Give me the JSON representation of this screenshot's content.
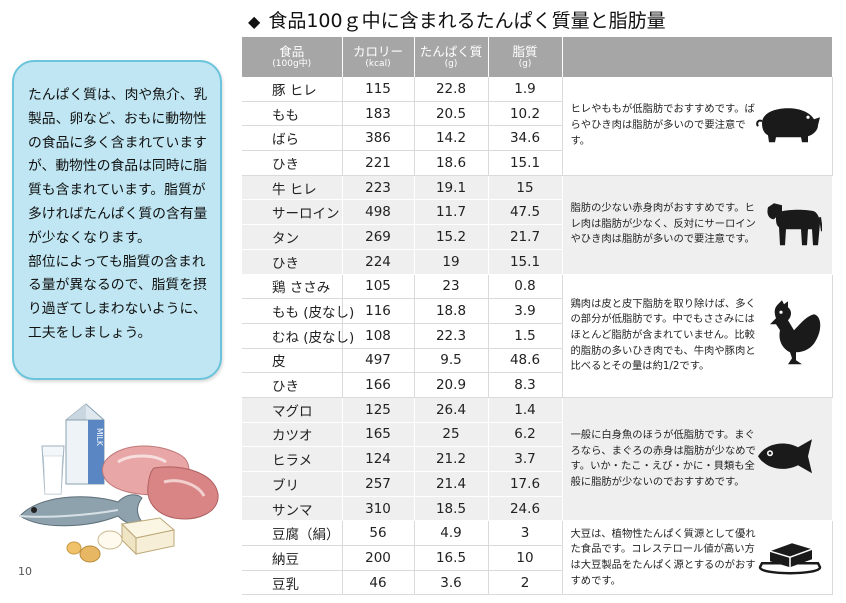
{
  "title": "食品100ｇ中に含まれるたんぱく質量と脂肪量",
  "title_marker": "◆",
  "bubble_text": [
    "たんぱく質は、肉や魚介、乳製品、卵など、おもに動物性の食品に多く含まれていますが、動物性の食品は同時に脂質も含まれています。脂質が多ければたんぱく質の含有量が少なくなります。",
    "部位によっても脂質の含まれる量が異なるので、脂質を摂り過ぎてしまわないように、工夫をしましょう。"
  ],
  "page_number": "10",
  "illustration_label": "MILK",
  "table": {
    "headers": [
      {
        "label": "食品",
        "sub": "(100g中)"
      },
      {
        "label": "カロリー",
        "sub": "(kcal)"
      },
      {
        "label": "たんぱく質",
        "sub": "(g)"
      },
      {
        "label": "脂質",
        "sub": "(g)"
      }
    ],
    "groups": [
      {
        "icon": "pig-icon",
        "note": "ヒレやももが低脂肪でおすすめです。ばらやひき肉は脂肪が多いので要注意です。",
        "rows": [
          {
            "food": "豚 ヒレ",
            "kcal": "115",
            "protein": "22.8",
            "fat": "1.9"
          },
          {
            "food": "もも",
            "kcal": "183",
            "protein": "20.5",
            "fat": "10.2"
          },
          {
            "food": "ばら",
            "kcal": "386",
            "protein": "14.2",
            "fat": "34.6"
          },
          {
            "food": "ひき",
            "kcal": "221",
            "protein": "18.6",
            "fat": "15.1"
          }
        ]
      },
      {
        "icon": "cow-icon",
        "note": "脂肪の少ない赤身肉がおすすめです。ヒレ肉は脂肪が少なく、反対にサーロインやひき肉は脂肪が多いので要注意です。",
        "rows": [
          {
            "food": "牛 ヒレ",
            "kcal": "223",
            "protein": "19.1",
            "fat": "15"
          },
          {
            "food": "サーロイン",
            "kcal": "498",
            "protein": "11.7",
            "fat": "47.5"
          },
          {
            "food": "タン",
            "kcal": "269",
            "protein": "15.2",
            "fat": "21.7"
          },
          {
            "food": "ひき",
            "kcal": "224",
            "protein": "19",
            "fat": "15.1"
          }
        ]
      },
      {
        "icon": "rooster-icon",
        "note": "鶏肉は皮と皮下脂肪を取り除けば、多くの部分が低脂肪です。中でもささみにはほとんど脂肪が含まれていません。比較的脂肪の多いひき肉でも、牛肉や豚肉と比べるとその量は約1/2です。",
        "rows": [
          {
            "food": "鶏 ささみ",
            "kcal": "105",
            "protein": "23",
            "fat": "0.8"
          },
          {
            "food": "もも (皮なし)",
            "kcal": "116",
            "protein": "18.8",
            "fat": "3.9"
          },
          {
            "food": "むね (皮なし)",
            "kcal": "108",
            "protein": "22.3",
            "fat": "1.5"
          },
          {
            "food": "皮",
            "kcal": "497",
            "protein": "9.5",
            "fat": "48.6"
          },
          {
            "food": "ひき",
            "kcal": "166",
            "protein": "20.9",
            "fat": "8.3"
          }
        ]
      },
      {
        "icon": "fish-icon",
        "note": "一般に白身魚のほうが低脂肪です。まぐろなら、まぐろの赤身は脂肪が少なめです。いか・たこ・えび・かに・貝類も全般に脂肪が少ないのでおすすめです。",
        "rows": [
          {
            "food": "マグロ",
            "kcal": "125",
            "protein": "26.4",
            "fat": "1.4"
          },
          {
            "food": "カツオ",
            "kcal": "165",
            "protein": "25",
            "fat": "6.2"
          },
          {
            "food": "ヒラメ",
            "kcal": "124",
            "protein": "21.2",
            "fat": "3.7"
          },
          {
            "food": "ブリ",
            "kcal": "257",
            "protein": "21.4",
            "fat": "17.6"
          },
          {
            "food": "サンマ",
            "kcal": "310",
            "protein": "18.5",
            "fat": "24.6"
          }
        ]
      },
      {
        "icon": "tofu-icon",
        "note": "大豆は、植物性たんぱく質源として優れた食品です。コレステロール値が高い方は大豆製品をたんぱく源とするのがおすすめです。",
        "rows": [
          {
            "food": "豆腐（絹）",
            "kcal": "56",
            "protein": "4.9",
            "fat": "3"
          },
          {
            "food": "納豆",
            "kcal": "200",
            "protein": "16.5",
            "fat": "10"
          },
          {
            "food": "豆乳",
            "kcal": "46",
            "protein": "3.6",
            "fat": "2"
          }
        ]
      }
    ]
  }
}
